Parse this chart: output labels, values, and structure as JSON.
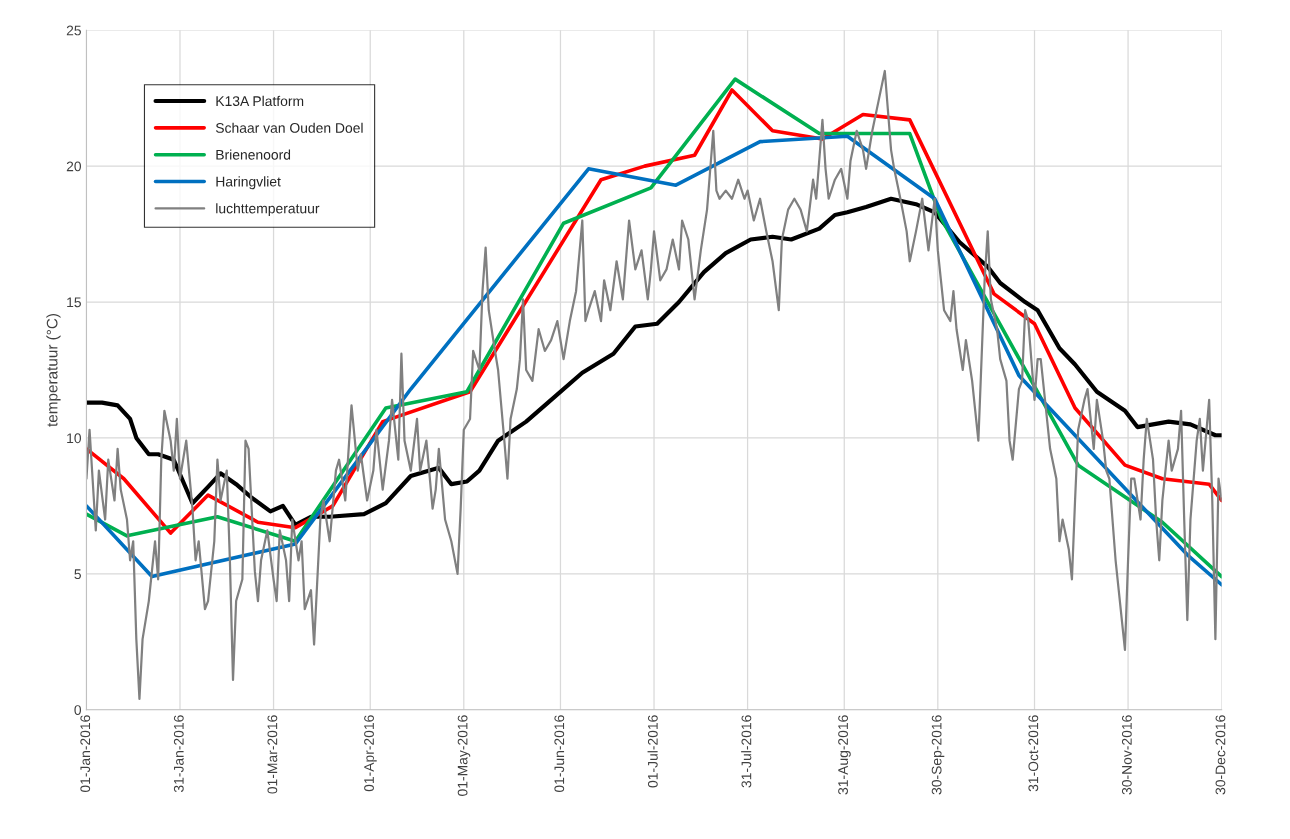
{
  "chart_data": {
    "type": "line",
    "ylabel": "temperatuur (°C)",
    "xlim": [
      "2016-01-01",
      "2016-12-30"
    ],
    "xticks": [
      {
        "value": "2016-01-01",
        "label": "01-Jan-2016"
      },
      {
        "value": "2016-01-31",
        "label": "31-Jan-2016"
      },
      {
        "value": "2016-03-01",
        "label": "01-Mar-2016"
      },
      {
        "value": "2016-04-01",
        "label": "01-Apr-2016"
      },
      {
        "value": "2016-05-01",
        "label": "01-May-2016"
      },
      {
        "value": "2016-06-01",
        "label": "01-Jun-2016"
      },
      {
        "value": "2016-07-01",
        "label": "01-Jul-2016"
      },
      {
        "value": "2016-07-31",
        "label": "31-Jul-2016"
      },
      {
        "value": "2016-08-31",
        "label": "31-Aug-2016"
      },
      {
        "value": "2016-09-30",
        "label": "30-Sep-2016"
      },
      {
        "value": "2016-10-31",
        "label": "31-Oct-2016"
      },
      {
        "value": "2016-11-30",
        "label": "30-Nov-2016"
      },
      {
        "value": "2016-12-30",
        "label": "30-Dec-2016"
      }
    ],
    "ylim": [
      0,
      25
    ],
    "yticks": [
      0,
      5,
      10,
      15,
      20,
      25
    ],
    "grid": true,
    "legend": "top left",
    "marker": "none",
    "line_style": "solid",
    "series": [
      {
        "name": "K13A Platform",
        "color": "#000000",
        "x": [
          "2016-01-01",
          "2016-01-06",
          "2016-01-11",
          "2016-01-15",
          "2016-01-17",
          "2016-01-21",
          "2016-01-24",
          "2016-01-29",
          "2016-02-04",
          "2016-02-09",
          "2016-02-13",
          "2016-02-18",
          "2016-02-23",
          "2016-02-29",
          "2016-03-04",
          "2016-03-08",
          "2016-03-13",
          "2016-03-19",
          "2016-03-30",
          "2016-04-06",
          "2016-04-14",
          "2016-04-23",
          "2016-04-27",
          "2016-05-02",
          "2016-05-06",
          "2016-05-12",
          "2016-05-21",
          "2016-05-28",
          "2016-06-08",
          "2016-06-18",
          "2016-06-25",
          "2016-07-02",
          "2016-07-09",
          "2016-07-17",
          "2016-07-24",
          "2016-08-01",
          "2016-08-08",
          "2016-08-14",
          "2016-08-23",
          "2016-08-28",
          "2016-09-01",
          "2016-09-07",
          "2016-09-15",
          "2016-09-23",
          "2016-09-29",
          "2016-10-07",
          "2016-10-16",
          "2016-10-20",
          "2016-10-28",
          "2016-11-01",
          "2016-11-08",
          "2016-11-13",
          "2016-11-20",
          "2016-11-29",
          "2016-12-03",
          "2016-12-13",
          "2016-12-20",
          "2016-12-28",
          "2016-12-30"
        ],
        "values": [
          11.3,
          11.3,
          11.2,
          10.7,
          10.0,
          9.4,
          9.4,
          9.2,
          7.6,
          8.2,
          8.7,
          8.3,
          7.8,
          7.3,
          7.5,
          6.8,
          7.1,
          7.1,
          7.2,
          7.6,
          8.6,
          8.9,
          8.3,
          8.4,
          8.8,
          9.9,
          10.6,
          11.3,
          12.4,
          13.1,
          14.1,
          14.2,
          15.0,
          16.1,
          16.8,
          17.3,
          17.4,
          17.3,
          17.7,
          18.2,
          18.3,
          18.5,
          18.8,
          18.6,
          18.3,
          17.2,
          16.3,
          15.7,
          15.0,
          14.7,
          13.3,
          12.7,
          11.7,
          11.0,
          10.4,
          10.6,
          10.5,
          10.1,
          10.1
        ]
      },
      {
        "name": "Schaar van Ouden Doel",
        "color": "#ff0000",
        "x": [
          "2016-01-01",
          "2016-01-13",
          "2016-01-28",
          "2016-02-09",
          "2016-02-25",
          "2016-03-08",
          "2016-03-20",
          "2016-04-05",
          "2016-05-03",
          "2016-06-14",
          "2016-06-28",
          "2016-07-14",
          "2016-07-26",
          "2016-08-08",
          "2016-08-24",
          "2016-09-06",
          "2016-09-21",
          "2016-10-18",
          "2016-10-31",
          "2016-11-13",
          "2016-11-29",
          "2016-12-11",
          "2016-12-26",
          "2016-12-30"
        ],
        "values": [
          9.6,
          8.5,
          6.5,
          7.9,
          6.9,
          6.7,
          7.5,
          10.6,
          11.7,
          19.5,
          20.0,
          20.4,
          22.8,
          21.3,
          21.0,
          21.9,
          21.7,
          15.3,
          14.2,
          11.1,
          9.0,
          8.5,
          8.3,
          7.7
        ]
      },
      {
        "name": "Brienenoord",
        "color": "#00b050",
        "x": [
          "2016-01-01",
          "2016-01-14",
          "2016-02-12",
          "2016-03-08",
          "2016-04-06",
          "2016-05-02",
          "2016-06-02",
          "2016-06-30",
          "2016-07-27",
          "2016-08-23",
          "2016-09-21",
          "2016-10-01",
          "2016-11-14",
          "2016-12-11",
          "2016-12-30"
        ],
        "values": [
          7.2,
          6.4,
          7.1,
          6.2,
          11.1,
          11.7,
          17.9,
          19.2,
          23.2,
          21.2,
          21.2,
          18.1,
          9.0,
          6.9,
          4.9
        ]
      },
      {
        "name": "Haringvliet",
        "color": "#0070c0",
        "x": [
          "2016-01-01",
          "2016-01-22",
          "2016-03-08",
          "2016-04-14",
          "2016-06-10",
          "2016-07-08",
          "2016-08-04",
          "2016-09-01",
          "2016-09-29",
          "2016-10-26",
          "2016-12-19",
          "2016-12-30"
        ],
        "values": [
          7.5,
          4.9,
          6.1,
          11.8,
          19.9,
          19.3,
          20.9,
          21.1,
          18.8,
          12.3,
          5.7,
          4.6
        ]
      },
      {
        "name": "luchttemperatuur",
        "color": "#808080",
        "x": [
          "2016-01-01",
          "2016-01-02",
          "2016-01-04",
          "2016-01-05",
          "2016-01-07",
          "2016-01-08",
          "2016-01-10",
          "2016-01-11",
          "2016-01-12",
          "2016-01-14",
          "2016-01-15",
          "2016-01-16",
          "2016-01-17",
          "2016-01-18",
          "2016-01-19",
          "2016-01-21",
          "2016-01-22",
          "2016-01-23",
          "2016-01-24",
          "2016-01-25",
          "2016-01-26",
          "2016-01-28",
          "2016-01-29",
          "2016-01-30",
          "2016-01-31",
          "2016-02-02",
          "2016-02-04",
          "2016-02-05",
          "2016-02-06",
          "2016-02-08",
          "2016-02-09",
          "2016-02-11",
          "2016-02-12",
          "2016-02-13",
          "2016-02-15",
          "2016-02-16",
          "2016-02-17",
          "2016-02-18",
          "2016-02-20",
          "2016-02-21",
          "2016-02-22",
          "2016-02-24",
          "2016-02-25",
          "2016-02-26",
          "2016-02-28",
          "2016-03-01",
          "2016-03-02",
          "2016-03-03",
          "2016-03-05",
          "2016-03-06",
          "2016-03-07",
          "2016-03-09",
          "2016-03-10",
          "2016-03-11",
          "2016-03-13",
          "2016-03-14",
          "2016-03-16",
          "2016-03-17",
          "2016-03-19",
          "2016-03-21",
          "2016-03-22",
          "2016-03-24",
          "2016-03-26",
          "2016-03-28",
          "2016-03-29",
          "2016-03-31",
          "2016-04-02",
          "2016-04-03",
          "2016-04-05",
          "2016-04-07",
          "2016-04-08",
          "2016-04-10",
          "2016-04-11",
          "2016-04-12",
          "2016-04-14",
          "2016-04-16",
          "2016-04-17",
          "2016-04-19",
          "2016-04-21",
          "2016-04-22",
          "2016-04-23",
          "2016-04-25",
          "2016-04-27",
          "2016-04-29",
          "2016-04-30",
          "2016-05-01",
          "2016-05-03",
          "2016-05-04",
          "2016-05-06",
          "2016-05-07",
          "2016-05-08",
          "2016-05-09",
          "2016-05-11",
          "2016-05-12",
          "2016-05-14",
          "2016-05-15",
          "2016-05-16",
          "2016-05-18",
          "2016-05-19",
          "2016-05-20",
          "2016-05-21",
          "2016-05-23",
          "2016-05-25",
          "2016-05-27",
          "2016-05-29",
          "2016-05-31",
          "2016-06-02",
          "2016-06-04",
          "2016-06-06",
          "2016-06-08",
          "2016-06-09",
          "2016-06-10",
          "2016-06-12",
          "2016-06-14",
          "2016-06-15",
          "2016-06-17",
          "2016-06-19",
          "2016-06-21",
          "2016-06-23",
          "2016-06-25",
          "2016-06-27",
          "2016-06-29",
          "2016-06-30",
          "2016-07-01",
          "2016-07-03",
          "2016-07-05",
          "2016-07-07",
          "2016-07-09",
          "2016-07-10",
          "2016-07-12",
          "2016-07-14",
          "2016-07-16",
          "2016-07-18",
          "2016-07-20",
          "2016-07-21",
          "2016-07-22",
          "2016-07-24",
          "2016-07-26",
          "2016-07-28",
          "2016-07-30",
          "2016-07-31",
          "2016-08-02",
          "2016-08-04",
          "2016-08-06",
          "2016-08-08",
          "2016-08-10",
          "2016-08-11",
          "2016-08-13",
          "2016-08-15",
          "2016-08-17",
          "2016-08-19",
          "2016-08-21",
          "2016-08-22",
          "2016-08-24",
          "2016-08-25",
          "2016-08-26",
          "2016-08-28",
          "2016-08-30",
          "2016-09-01",
          "2016-09-02",
          "2016-09-04",
          "2016-09-06",
          "2016-09-07",
          "2016-09-09",
          "2016-09-11",
          "2016-09-13",
          "2016-09-15",
          "2016-09-16",
          "2016-09-18",
          "2016-09-20",
          "2016-09-21",
          "2016-09-23",
          "2016-09-25",
          "2016-09-27",
          "2016-09-29",
          "2016-09-30",
          "2016-10-01",
          "2016-10-02",
          "2016-10-04",
          "2016-10-05",
          "2016-10-06",
          "2016-10-08",
          "2016-10-09",
          "2016-10-11",
          "2016-10-12",
          "2016-10-13",
          "2016-10-15",
          "2016-10-16",
          "2016-10-17",
          "2016-10-19",
          "2016-10-20",
          "2016-10-22",
          "2016-10-23",
          "2016-10-24",
          "2016-10-26",
          "2016-10-27",
          "2016-10-28",
          "2016-10-29",
          "2016-10-31",
          "2016-11-01",
          "2016-11-02",
          "2016-11-04",
          "2016-11-05",
          "2016-11-07",
          "2016-11-08",
          "2016-11-09",
          "2016-11-11",
          "2016-11-12",
          "2016-11-13",
          "2016-11-14",
          "2016-11-16",
          "2016-11-17",
          "2016-11-19",
          "2016-11-20",
          "2016-11-22",
          "2016-11-23",
          "2016-11-24",
          "2016-11-26",
          "2016-11-27",
          "2016-11-29",
          "2016-11-30",
          "2016-12-01",
          "2016-12-02",
          "2016-12-04",
          "2016-12-05",
          "2016-12-06",
          "2016-12-08",
          "2016-12-09",
          "2016-12-10",
          "2016-12-11",
          "2016-12-13",
          "2016-12-14",
          "2016-12-16",
          "2016-12-17",
          "2016-12-18",
          "2016-12-19",
          "2016-12-20",
          "2016-12-22",
          "2016-12-23",
          "2016-12-24",
          "2016-12-26",
          "2016-12-27",
          "2016-12-28",
          "2016-12-29",
          "2016-12-30"
        ],
        "values": [
          8.5,
          10.3,
          6.6,
          8.8,
          7.0,
          9.2,
          7.7,
          9.6,
          8.1,
          7.0,
          5.5,
          6.2,
          2.6,
          0.4,
          2.6,
          4.0,
          5.1,
          6.2,
          4.8,
          9.2,
          11.0,
          9.9,
          8.8,
          10.7,
          8.5,
          9.9,
          7.4,
          5.5,
          6.2,
          3.7,
          4.0,
          6.2,
          9.2,
          7.7,
          8.8,
          5.5,
          1.1,
          4.0,
          4.8,
          9.9,
          9.6,
          5.1,
          4.0,
          5.5,
          6.6,
          4.8,
          4.0,
          6.6,
          5.5,
          4.0,
          7.0,
          5.5,
          6.2,
          3.7,
          4.4,
          2.4,
          7.0,
          7.7,
          6.2,
          8.8,
          9.2,
          7.7,
          11.2,
          8.8,
          9.4,
          7.7,
          8.8,
          10.3,
          8.1,
          9.9,
          11.4,
          9.2,
          13.1,
          9.9,
          8.8,
          10.7,
          8.8,
          9.9,
          7.4,
          8.1,
          9.6,
          7.0,
          6.2,
          5.0,
          7.4,
          10.3,
          10.7,
          13.2,
          12.5,
          15.4,
          17.0,
          14.7,
          13.2,
          12.5,
          9.9,
          8.5,
          10.7,
          11.8,
          12.9,
          15.1,
          12.5,
          12.1,
          14.0,
          13.2,
          13.6,
          14.3,
          12.9,
          14.3,
          15.4,
          18.0,
          14.3,
          14.7,
          15.4,
          14.3,
          15.8,
          14.7,
          16.5,
          15.1,
          18.0,
          16.2,
          16.9,
          15.1,
          16.2,
          17.6,
          15.8,
          16.2,
          17.3,
          16.2,
          18.0,
          17.3,
          15.1,
          16.9,
          18.4,
          21.3,
          19.1,
          18.8,
          19.1,
          18.8,
          19.5,
          18.8,
          19.1,
          18.0,
          18.8,
          17.6,
          16.5,
          14.7,
          17.3,
          18.4,
          18.8,
          18.4,
          17.6,
          19.5,
          18.8,
          21.7,
          19.9,
          18.8,
          19.5,
          19.9,
          18.8,
          20.2,
          21.3,
          20.6,
          19.9,
          21.3,
          22.4,
          23.5,
          20.6,
          19.9,
          18.8,
          17.6,
          16.5,
          17.6,
          18.8,
          16.9,
          18.8,
          16.9,
          15.8,
          14.7,
          14.3,
          15.4,
          14.0,
          12.5,
          13.6,
          12.1,
          11.0,
          9.9,
          15.8,
          17.6,
          15.1,
          14.0,
          12.9,
          12.1,
          9.9,
          9.2,
          11.8,
          12.1,
          14.7,
          14.3,
          11.4,
          12.9,
          12.9,
          10.7,
          9.6,
          8.5,
          6.2,
          7.0,
          5.9,
          4.8,
          7.7,
          10.3,
          11.4,
          11.8,
          9.6,
          11.4,
          9.9,
          8.8,
          8.5,
          5.5,
          4.4,
          2.2,
          5.5,
          8.5,
          8.5,
          7.0,
          9.2,
          10.7,
          9.2,
          7.0,
          5.5,
          7.7,
          9.9,
          8.8,
          9.6,
          11.0,
          7.0,
          3.3,
          7.0,
          9.9,
          10.7,
          8.8,
          11.4,
          7.7,
          2.6,
          8.5,
          7.7
        ]
      }
    ]
  }
}
